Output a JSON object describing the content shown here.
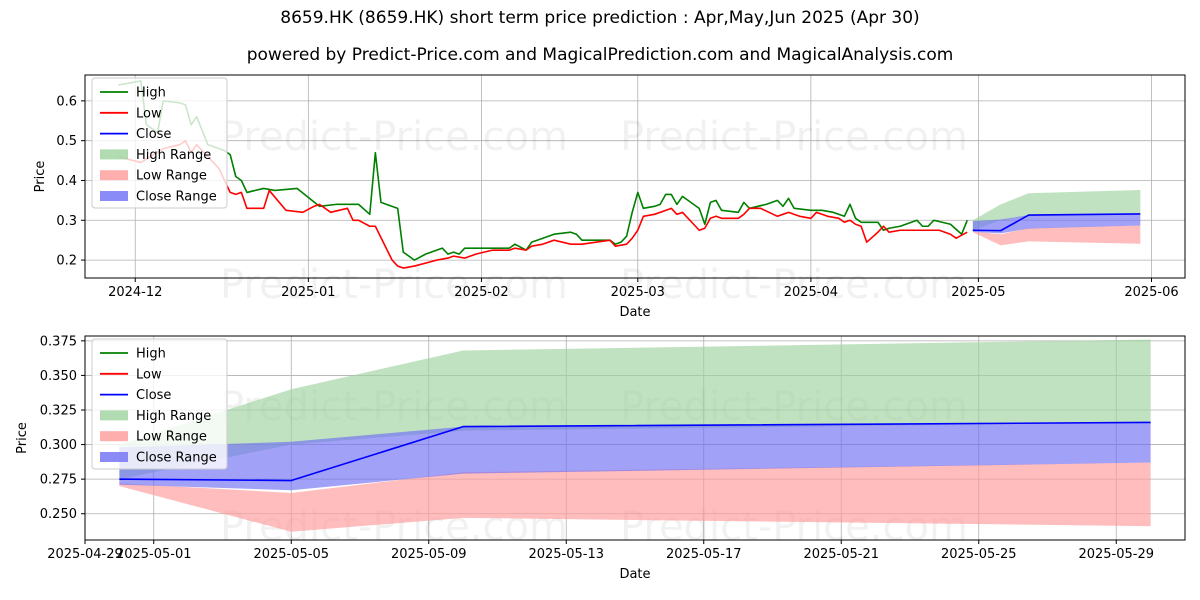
{
  "title": "8659.HK (8659.HK) short term price prediction : Apr,May,Jun 2025 (Apr 30)",
  "subtitle": "powered by Predict-Price.com and MagicalPrediction.com and MagicalAnalysis.com",
  "watermark": "Predict-Price.com",
  "colors": {
    "high": "#008000",
    "low": "#ff0000",
    "close": "#0000ff",
    "high_range": "#9ed39e",
    "low_range": "#ff9a9a",
    "close_range": "#6e6ef5",
    "grid": "#b0b0b0"
  },
  "chart_data": [
    {
      "type": "line",
      "xlabel": "Date",
      "ylabel": "Price",
      "xlim": [
        "2024-11-22",
        "2025-06-07"
      ],
      "ylim": [
        0.155,
        0.665
      ],
      "x_ticks": [
        "2024-12",
        "2025-01",
        "2025-02",
        "2025-03",
        "2025-04",
        "2025-05",
        "2025-06"
      ],
      "x_tick_dates": [
        "2024-12-01",
        "2025-01-01",
        "2025-02-01",
        "2025-03-01",
        "2025-04-01",
        "2025-05-01",
        "2025-06-01"
      ],
      "y_ticks": [
        0.2,
        0.3,
        0.4,
        0.5,
        0.6
      ],
      "y_tick_labels": [
        "0.2",
        "0.3",
        "0.4",
        "0.5",
        "0.6"
      ],
      "grid": true,
      "legend_position": "upper-left",
      "legend": [
        "High",
        "Low",
        "Close",
        "High Range",
        "Low Range",
        "Close Range"
      ],
      "series": [
        {
          "name": "High",
          "color": "#008000",
          "points": [
            [
              "2024-11-28",
              0.64
            ],
            [
              "2024-12-02",
              0.65
            ],
            [
              "2024-12-03",
              0.54
            ],
            [
              "2024-12-05",
              0.52
            ],
            [
              "2024-12-06",
              0.6
            ],
            [
              "2024-12-09",
              0.595
            ],
            [
              "2024-12-10",
              0.59
            ],
            [
              "2024-12-11",
              0.54
            ],
            [
              "2024-12-12",
              0.56
            ],
            [
              "2024-12-13",
              0.525
            ],
            [
              "2024-12-14",
              0.49
            ],
            [
              "2024-12-16",
              0.48
            ],
            [
              "2024-12-17",
              0.475
            ],
            [
              "2024-12-18",
              0.465
            ],
            [
              "2024-12-19",
              0.41
            ],
            [
              "2024-12-20",
              0.4
            ],
            [
              "2024-12-21",
              0.37
            ],
            [
              "2024-12-24",
              0.38
            ],
            [
              "2024-12-26",
              0.375
            ],
            [
              "2024-12-30",
              0.38
            ],
            [
              "2025-01-03",
              0.335
            ],
            [
              "2025-01-06",
              0.34
            ],
            [
              "2025-01-10",
              0.34
            ],
            [
              "2025-01-12",
              0.315
            ],
            [
              "2025-01-13",
              0.47
            ],
            [
              "2025-01-14",
              0.345
            ],
            [
              "2025-01-17",
              0.33
            ],
            [
              "2025-01-18",
              0.22
            ],
            [
              "2025-01-20",
              0.2
            ],
            [
              "2025-01-22",
              0.215
            ],
            [
              "2025-01-24",
              0.225
            ],
            [
              "2025-01-25",
              0.23
            ],
            [
              "2025-01-26",
              0.215
            ],
            [
              "2025-01-27",
              0.22
            ],
            [
              "2025-01-28",
              0.215
            ],
            [
              "2025-01-29",
              0.23
            ],
            [
              "2025-02-03",
              0.23
            ],
            [
              "2025-02-06",
              0.23
            ],
            [
              "2025-02-07",
              0.24
            ],
            [
              "2025-02-09",
              0.225
            ],
            [
              "2025-02-10",
              0.245
            ],
            [
              "2025-02-12",
              0.255
            ],
            [
              "2025-02-14",
              0.265
            ],
            [
              "2025-02-17",
              0.27
            ],
            [
              "2025-02-18",
              0.265
            ],
            [
              "2025-02-19",
              0.25
            ],
            [
              "2025-02-24",
              0.25
            ],
            [
              "2025-02-25",
              0.24
            ],
            [
              "2025-02-26",
              0.245
            ],
            [
              "2025-02-27",
              0.26
            ],
            [
              "2025-02-28",
              0.32
            ],
            [
              "2025-03-01",
              0.37
            ],
            [
              "2025-03-02",
              0.33
            ],
            [
              "2025-03-04",
              0.335
            ],
            [
              "2025-03-05",
              0.34
            ],
            [
              "2025-03-06",
              0.365
            ],
            [
              "2025-03-07",
              0.365
            ],
            [
              "2025-03-08",
              0.34
            ],
            [
              "2025-03-09",
              0.36
            ],
            [
              "2025-03-10",
              0.35
            ],
            [
              "2025-03-12",
              0.33
            ],
            [
              "2025-03-13",
              0.29
            ],
            [
              "2025-03-14",
              0.345
            ],
            [
              "2025-03-15",
              0.35
            ],
            [
              "2025-03-16",
              0.325
            ],
            [
              "2025-03-19",
              0.32
            ],
            [
              "2025-03-20",
              0.345
            ],
            [
              "2025-03-21",
              0.33
            ],
            [
              "2025-03-24",
              0.34
            ],
            [
              "2025-03-26",
              0.35
            ],
            [
              "2025-03-27",
              0.335
            ],
            [
              "2025-03-28",
              0.355
            ],
            [
              "2025-03-29",
              0.33
            ],
            [
              "2025-04-01",
              0.325
            ],
            [
              "2025-04-03",
              0.325
            ],
            [
              "2025-04-05",
              0.32
            ],
            [
              "2025-04-07",
              0.31
            ],
            [
              "2025-04-08",
              0.34
            ],
            [
              "2025-04-09",
              0.305
            ],
            [
              "2025-04-10",
              0.295
            ],
            [
              "2025-04-13",
              0.295
            ],
            [
              "2025-04-14",
              0.275
            ],
            [
              "2025-04-15",
              0.28
            ],
            [
              "2025-04-17",
              0.285
            ],
            [
              "2025-04-20",
              0.3
            ],
            [
              "2025-04-21",
              0.285
            ],
            [
              "2025-04-22",
              0.285
            ],
            [
              "2025-04-23",
              0.3
            ],
            [
              "2025-04-26",
              0.29
            ],
            [
              "2025-04-28",
              0.265
            ],
            [
              "2025-04-29",
              0.3
            ]
          ]
        },
        {
          "name": "Low",
          "color": "#ff0000",
          "points": [
            [
              "2024-11-28",
              0.46
            ],
            [
              "2024-12-02",
              0.445
            ],
            [
              "2024-12-06",
              0.48
            ],
            [
              "2024-12-09",
              0.49
            ],
            [
              "2024-12-10",
              0.5
            ],
            [
              "2024-12-11",
              0.47
            ],
            [
              "2024-12-12",
              0.49
            ],
            [
              "2024-12-13",
              0.475
            ],
            [
              "2024-12-16",
              0.43
            ],
            [
              "2024-12-18",
              0.37
            ],
            [
              "2024-12-19",
              0.365
            ],
            [
              "2024-12-20",
              0.37
            ],
            [
              "2024-12-21",
              0.33
            ],
            [
              "2024-12-24",
              0.33
            ],
            [
              "2024-12-25",
              0.375
            ],
            [
              "2024-12-28",
              0.325
            ],
            [
              "2024-12-31",
              0.32
            ],
            [
              "2025-01-02",
              0.335
            ],
            [
              "2025-01-03",
              0.34
            ],
            [
              "2025-01-05",
              0.32
            ],
            [
              "2025-01-08",
              0.33
            ],
            [
              "2025-01-09",
              0.3
            ],
            [
              "2025-01-10",
              0.3
            ],
            [
              "2025-01-12",
              0.285
            ],
            [
              "2025-01-13",
              0.285
            ],
            [
              "2025-01-16",
              0.2
            ],
            [
              "2025-01-17",
              0.185
            ],
            [
              "2025-01-18",
              0.18
            ],
            [
              "2025-01-20",
              0.185
            ],
            [
              "2025-01-24",
              0.2
            ],
            [
              "2025-01-26",
              0.205
            ],
            [
              "2025-01-27",
              0.21
            ],
            [
              "2025-01-29",
              0.205
            ],
            [
              "2025-01-31",
              0.215
            ],
            [
              "2025-02-03",
              0.225
            ],
            [
              "2025-02-06",
              0.225
            ],
            [
              "2025-02-07",
              0.23
            ],
            [
              "2025-02-09",
              0.225
            ],
            [
              "2025-02-10",
              0.235
            ],
            [
              "2025-02-12",
              0.24
            ],
            [
              "2025-02-14",
              0.25
            ],
            [
              "2025-02-17",
              0.24
            ],
            [
              "2025-02-19",
              0.24
            ],
            [
              "2025-02-24",
              0.25
            ],
            [
              "2025-02-25",
              0.235
            ],
            [
              "2025-02-27",
              0.24
            ],
            [
              "2025-02-28",
              0.255
            ],
            [
              "2025-03-01",
              0.275
            ],
            [
              "2025-03-02",
              0.31
            ],
            [
              "2025-03-04",
              0.315
            ],
            [
              "2025-03-06",
              0.325
            ],
            [
              "2025-03-07",
              0.33
            ],
            [
              "2025-03-08",
              0.315
            ],
            [
              "2025-03-09",
              0.32
            ],
            [
              "2025-03-11",
              0.29
            ],
            [
              "2025-03-12",
              0.275
            ],
            [
              "2025-03-13",
              0.28
            ],
            [
              "2025-03-14",
              0.305
            ],
            [
              "2025-03-15",
              0.31
            ],
            [
              "2025-03-16",
              0.305
            ],
            [
              "2025-03-19",
              0.305
            ],
            [
              "2025-03-20",
              0.315
            ],
            [
              "2025-03-21",
              0.33
            ],
            [
              "2025-03-23",
              0.33
            ],
            [
              "2025-03-26",
              0.31
            ],
            [
              "2025-03-27",
              0.315
            ],
            [
              "2025-03-28",
              0.32
            ],
            [
              "2025-03-30",
              0.31
            ],
            [
              "2025-04-01",
              0.305
            ],
            [
              "2025-04-02",
              0.32
            ],
            [
              "2025-04-04",
              0.31
            ],
            [
              "2025-04-06",
              0.305
            ],
            [
              "2025-04-07",
              0.295
            ],
            [
              "2025-04-08",
              0.3
            ],
            [
              "2025-04-09",
              0.29
            ],
            [
              "2025-04-10",
              0.285
            ],
            [
              "2025-04-11",
              0.245
            ],
            [
              "2025-04-13",
              0.27
            ],
            [
              "2025-04-14",
              0.285
            ],
            [
              "2025-04-15",
              0.27
            ],
            [
              "2025-04-17",
              0.275
            ],
            [
              "2025-04-21",
              0.275
            ],
            [
              "2025-04-24",
              0.275
            ],
            [
              "2025-04-26",
              0.265
            ],
            [
              "2025-04-27",
              0.255
            ],
            [
              "2025-04-29",
              0.27
            ]
          ]
        },
        {
          "name": "Close",
          "color": "#0000ff",
          "points": [
            [
              "2025-04-30",
              0.275
            ],
            [
              "2025-05-05",
              0.274
            ],
            [
              "2025-05-10",
              0.313
            ],
            [
              "2025-05-30",
              0.316
            ]
          ]
        }
      ],
      "ranges": [
        {
          "name": "High Range",
          "color": "#9ed39e",
          "x": [
            "2025-04-30",
            "2025-05-05",
            "2025-05-10",
            "2025-05-30"
          ],
          "upper": [
            0.3,
            0.34,
            0.368,
            0.376
          ],
          "lower": [
            0.275,
            0.3,
            0.31,
            0.316
          ]
        },
        {
          "name": "Low Range",
          "color": "#ff9a9a",
          "x": [
            "2025-04-30",
            "2025-05-05",
            "2025-05-10",
            "2025-05-30"
          ],
          "upper": [
            0.272,
            0.265,
            0.28,
            0.287
          ],
          "lower": [
            0.27,
            0.237,
            0.247,
            0.241
          ]
        },
        {
          "name": "Close Range",
          "color": "#6e6ef5",
          "x": [
            "2025-04-30",
            "2025-05-05",
            "2025-05-10",
            "2025-05-30"
          ],
          "upper": [
            0.298,
            0.302,
            0.313,
            0.316
          ],
          "lower": [
            0.271,
            0.267,
            0.279,
            0.287
          ]
        }
      ]
    },
    {
      "type": "line",
      "xlabel": "Date",
      "ylabel": "Price",
      "xlim": [
        "2025-04-29",
        "2025-05-31"
      ],
      "ylim": [
        0.231,
        0.3785
      ],
      "x_ticks": [
        "2025-04-29",
        "2025-05-01",
        "2025-05-05",
        "2025-05-09",
        "2025-05-13",
        "2025-05-17",
        "2025-05-21",
        "2025-05-25",
        "2025-05-29"
      ],
      "x_tick_dates": [
        "2025-04-29",
        "2025-05-01",
        "2025-05-05",
        "2025-05-09",
        "2025-05-13",
        "2025-05-17",
        "2025-05-21",
        "2025-05-25",
        "2025-05-29"
      ],
      "y_ticks": [
        0.25,
        0.275,
        0.3,
        0.325,
        0.35,
        0.375
      ],
      "y_tick_labels": [
        "0.250",
        "0.275",
        "0.300",
        "0.325",
        "0.350",
        "0.375"
      ],
      "grid": true,
      "legend_position": "upper-left",
      "legend": [
        "High",
        "Low",
        "Close",
        "High Range",
        "Low Range",
        "Close Range"
      ],
      "series": [
        {
          "name": "Close",
          "color": "#0000ff",
          "points": [
            [
              "2025-04-30",
              0.275
            ],
            [
              "2025-05-05",
              0.274
            ],
            [
              "2025-05-10",
              0.313
            ],
            [
              "2025-05-30",
              0.316
            ]
          ]
        }
      ],
      "ranges": [
        {
          "name": "High Range",
          "color": "#9ed39e",
          "x": [
            "2025-04-30",
            "2025-05-05",
            "2025-05-10",
            "2025-05-30"
          ],
          "upper": [
            0.3,
            0.34,
            0.368,
            0.376
          ],
          "lower": [
            0.275,
            0.3,
            0.31,
            0.316
          ]
        },
        {
          "name": "Low Range",
          "color": "#ff9a9a",
          "x": [
            "2025-04-30",
            "2025-05-05",
            "2025-05-10",
            "2025-05-30"
          ],
          "upper": [
            0.272,
            0.265,
            0.28,
            0.287
          ],
          "lower": [
            0.27,
            0.237,
            0.247,
            0.241
          ]
        },
        {
          "name": "Close Range",
          "color": "#6e6ef5",
          "x": [
            "2025-04-30",
            "2025-05-05",
            "2025-05-10",
            "2025-05-30"
          ],
          "upper": [
            0.298,
            0.302,
            0.313,
            0.316
          ],
          "lower": [
            0.271,
            0.267,
            0.279,
            0.287
          ]
        }
      ]
    }
  ]
}
